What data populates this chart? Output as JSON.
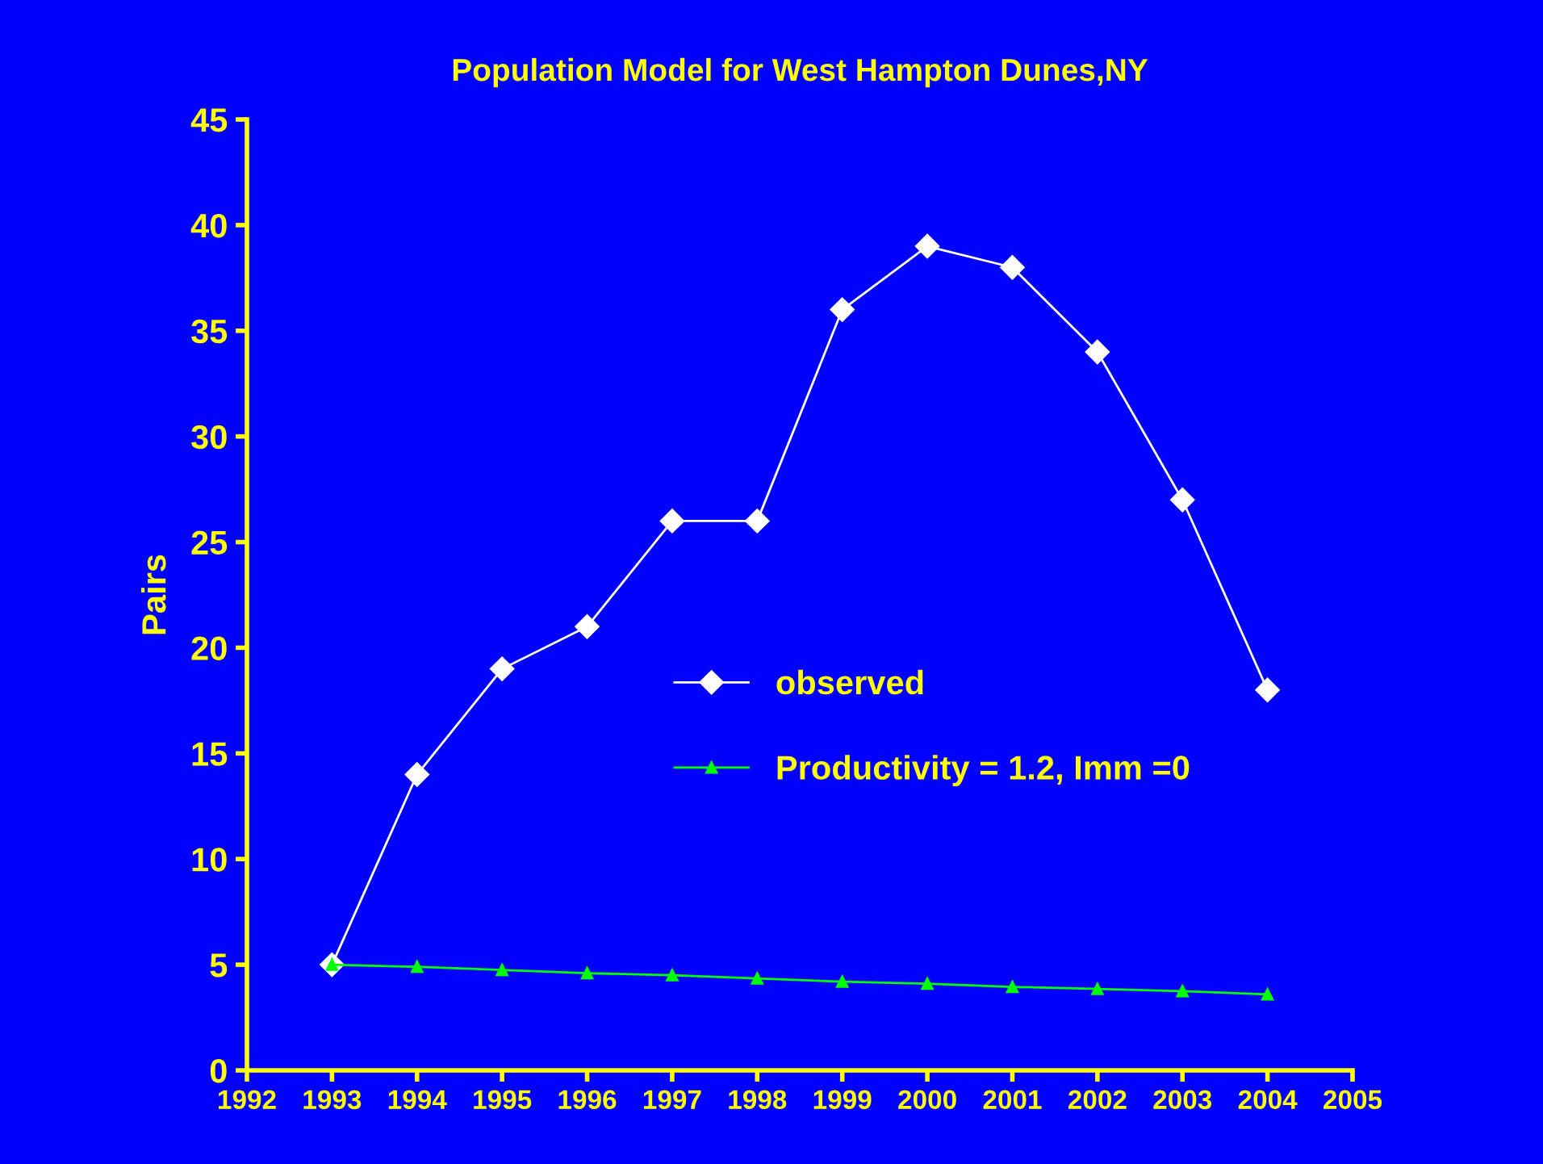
{
  "chart_data": {
    "type": "line",
    "title": "Population Model for West Hampton Dunes,NY",
    "ylabel": "Pairs",
    "x": [
      1993,
      1994,
      1995,
      1996,
      1997,
      1998,
      1999,
      2000,
      2001,
      2002,
      2003,
      2004
    ],
    "series": [
      {
        "name": "observed",
        "color": "#ffffff",
        "marker": "diamond",
        "values": [
          5,
          14,
          19,
          21,
          26,
          26,
          36,
          39,
          38,
          34,
          27,
          18
        ]
      },
      {
        "name": "Productivity = 1.2, Imm =0",
        "color": "#00ff00",
        "marker": "triangle",
        "values": [
          5,
          4.9,
          4.75,
          4.6,
          4.5,
          4.35,
          4.2,
          4.1,
          3.95,
          3.85,
          3.75,
          3.6
        ]
      }
    ],
    "xlim": [
      1992,
      2005
    ],
    "xticks": [
      1992,
      1993,
      1994,
      1995,
      1996,
      1997,
      1998,
      1999,
      2000,
      2001,
      2002,
      2003,
      2004,
      2005
    ],
    "ylim": [
      0,
      45
    ],
    "yticks": [
      0,
      5,
      10,
      15,
      20,
      25,
      30,
      35,
      40,
      45
    ],
    "grid": false,
    "legend": "center",
    "line_style": "solid"
  }
}
